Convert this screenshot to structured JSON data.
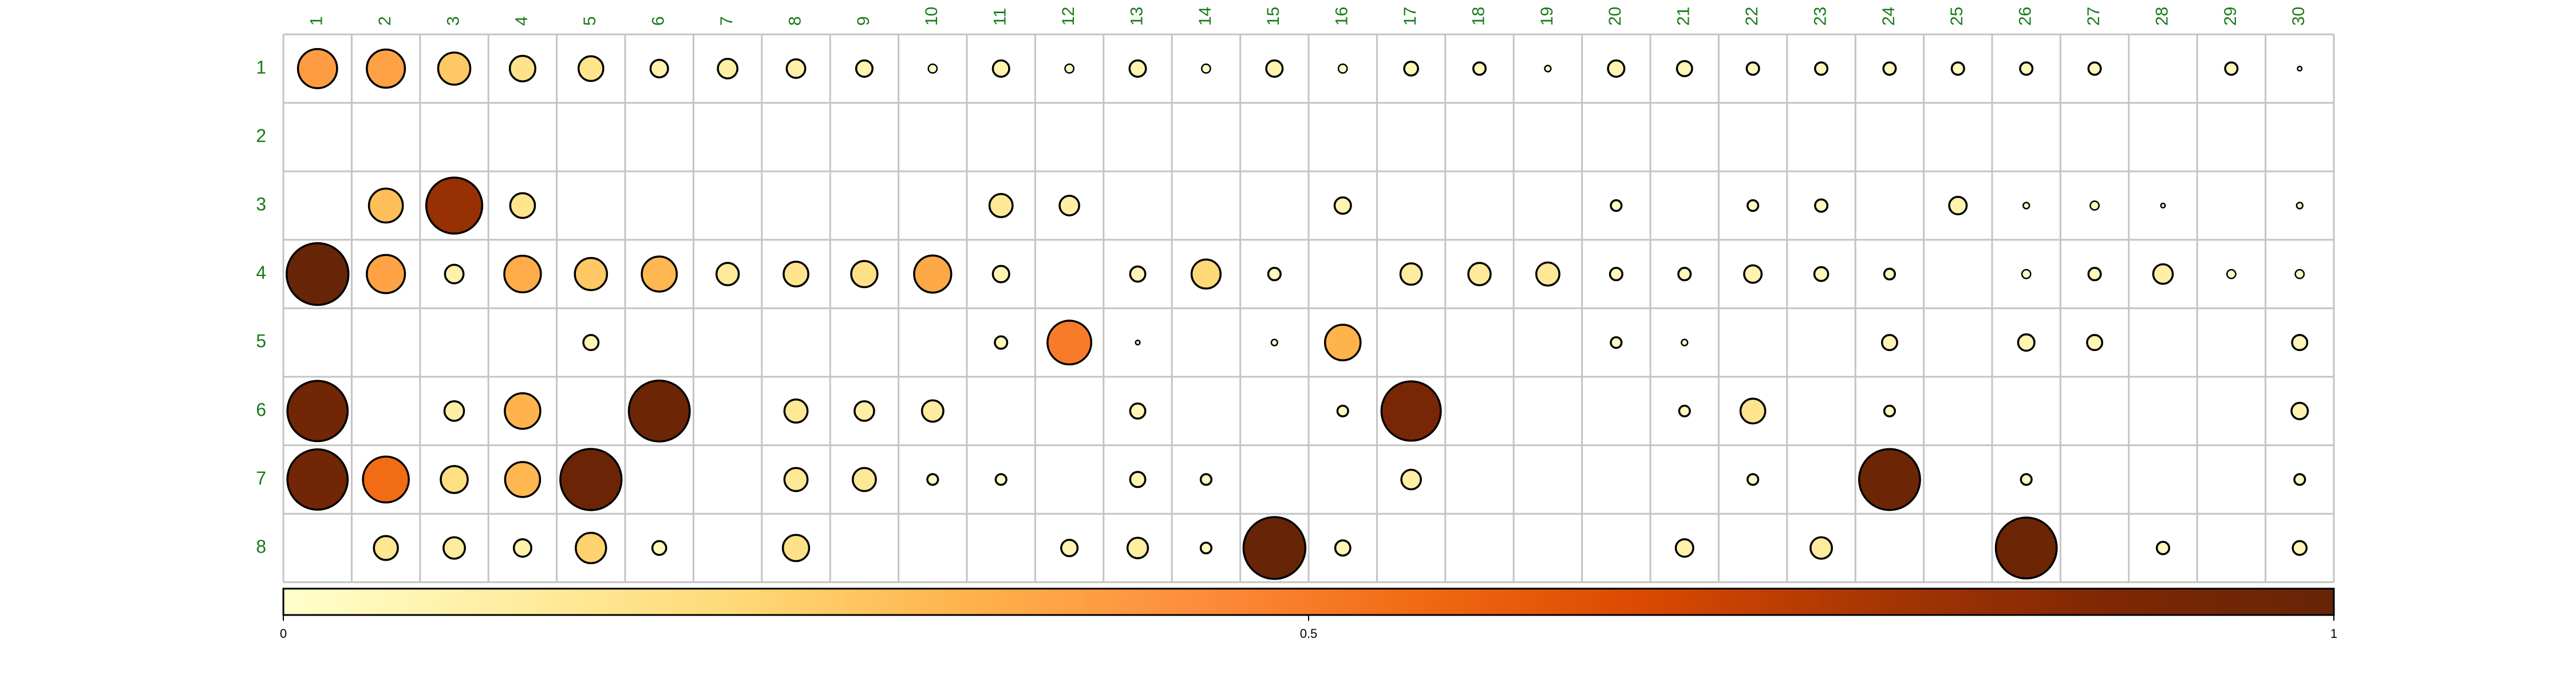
{
  "chart_data": {
    "type": "bubble-matrix",
    "title": "",
    "xlabel": "",
    "ylabel": "",
    "columns": [
      "1",
      "2",
      "3",
      "4",
      "5",
      "6",
      "7",
      "8",
      "9",
      "10",
      "11",
      "12",
      "13",
      "14",
      "15",
      "16",
      "17",
      "18",
      "19",
      "20",
      "21",
      "22",
      "23",
      "24",
      "25",
      "26",
      "27",
      "28",
      "29",
      "30"
    ],
    "rows": [
      "1",
      "2",
      "3",
      "4",
      "5",
      "6",
      "7",
      "8"
    ],
    "value_range": [
      0,
      1
    ],
    "colorbar": {
      "ticks": [
        {
          "value": 0,
          "label": "0"
        },
        {
          "value": 0.5,
          "label": "0.5"
        },
        {
          "value": 1,
          "label": "1"
        }
      ],
      "colors": [
        "#ffffcc",
        "#ffeda0",
        "#fed976",
        "#feb24c",
        "#fd8d3c",
        "#f16913",
        "#d94801",
        "#a63603",
        "#7f2704",
        "#662506"
      ],
      "placement": "bottom"
    },
    "label_color": "#1a7a1a",
    "grid": true,
    "values": [
      [
        0.4,
        0.38,
        0.27,
        0.17,
        0.16,
        0.08,
        0.1,
        0.09,
        0.07,
        0.02,
        0.07,
        0.02,
        0.07,
        0.02,
        0.07,
        0.02,
        0.05,
        0.04,
        0.01,
        0.07,
        0.06,
        0.04,
        0.04,
        0.04,
        0.04,
        0.04,
        0.04,
        null,
        0.04,
        0.005
      ],
      [
        null,
        null,
        null,
        null,
        null,
        null,
        null,
        null,
        null,
        null,
        null,
        null,
        null,
        null,
        null,
        null,
        null,
        null,
        null,
        null,
        null,
        null,
        null,
        null,
        null,
        null,
        null,
        null,
        null,
        null
      ],
      [
        null,
        0.3,
        0.82,
        0.16,
        null,
        null,
        null,
        null,
        null,
        null,
        0.14,
        0.1,
        null,
        null,
        null,
        0.07,
        null,
        null,
        null,
        0.03,
        null,
        0.03,
        0.04,
        null,
        0.08,
        0.01,
        0.02,
        0.005,
        null,
        0.01
      ],
      [
        1.0,
        0.38,
        0.09,
        0.35,
        0.27,
        0.32,
        0.13,
        0.16,
        0.18,
        0.36,
        0.07,
        null,
        0.06,
        0.22,
        0.04,
        null,
        0.12,
        0.13,
        0.14,
        0.04,
        0.04,
        0.08,
        0.05,
        0.03,
        null,
        0.02,
        0.04,
        0.1,
        0.02,
        0.02
      ],
      [
        null,
        null,
        null,
        null,
        0.06,
        null,
        null,
        null,
        null,
        null,
        0.04,
        0.5,
        0.005,
        null,
        0.01,
        0.33,
        null,
        null,
        null,
        0.03,
        0.01,
        null,
        null,
        0.06,
        null,
        0.07,
        0.06,
        null,
        null,
        0.06
      ],
      [
        0.95,
        null,
        0.1,
        0.33,
        null,
        0.97,
        null,
        0.14,
        0.1,
        0.12,
        null,
        null,
        0.06,
        null,
        null,
        0.03,
        0.92,
        null,
        null,
        null,
        0.03,
        0.16,
        null,
        0.03,
        null,
        null,
        null,
        null,
        null,
        0.07
      ],
      [
        0.95,
        0.55,
        0.19,
        0.32,
        0.98,
        null,
        null,
        0.14,
        0.14,
        0.03,
        0.03,
        null,
        0.06,
        0.03,
        null,
        null,
        0.1,
        null,
        null,
        null,
        null,
        0.03,
        null,
        0.97,
        null,
        0.03,
        null,
        null,
        null,
        0.03
      ],
      [
        null,
        0.15,
        0.12,
        0.08,
        0.24,
        0.05,
        null,
        0.18,
        null,
        null,
        null,
        0.07,
        0.11,
        0.03,
        1.0,
        0.06,
        null,
        null,
        null,
        null,
        0.08,
        null,
        0.12,
        null,
        null,
        0.97,
        null,
        0.04,
        null,
        0.05
      ]
    ]
  }
}
